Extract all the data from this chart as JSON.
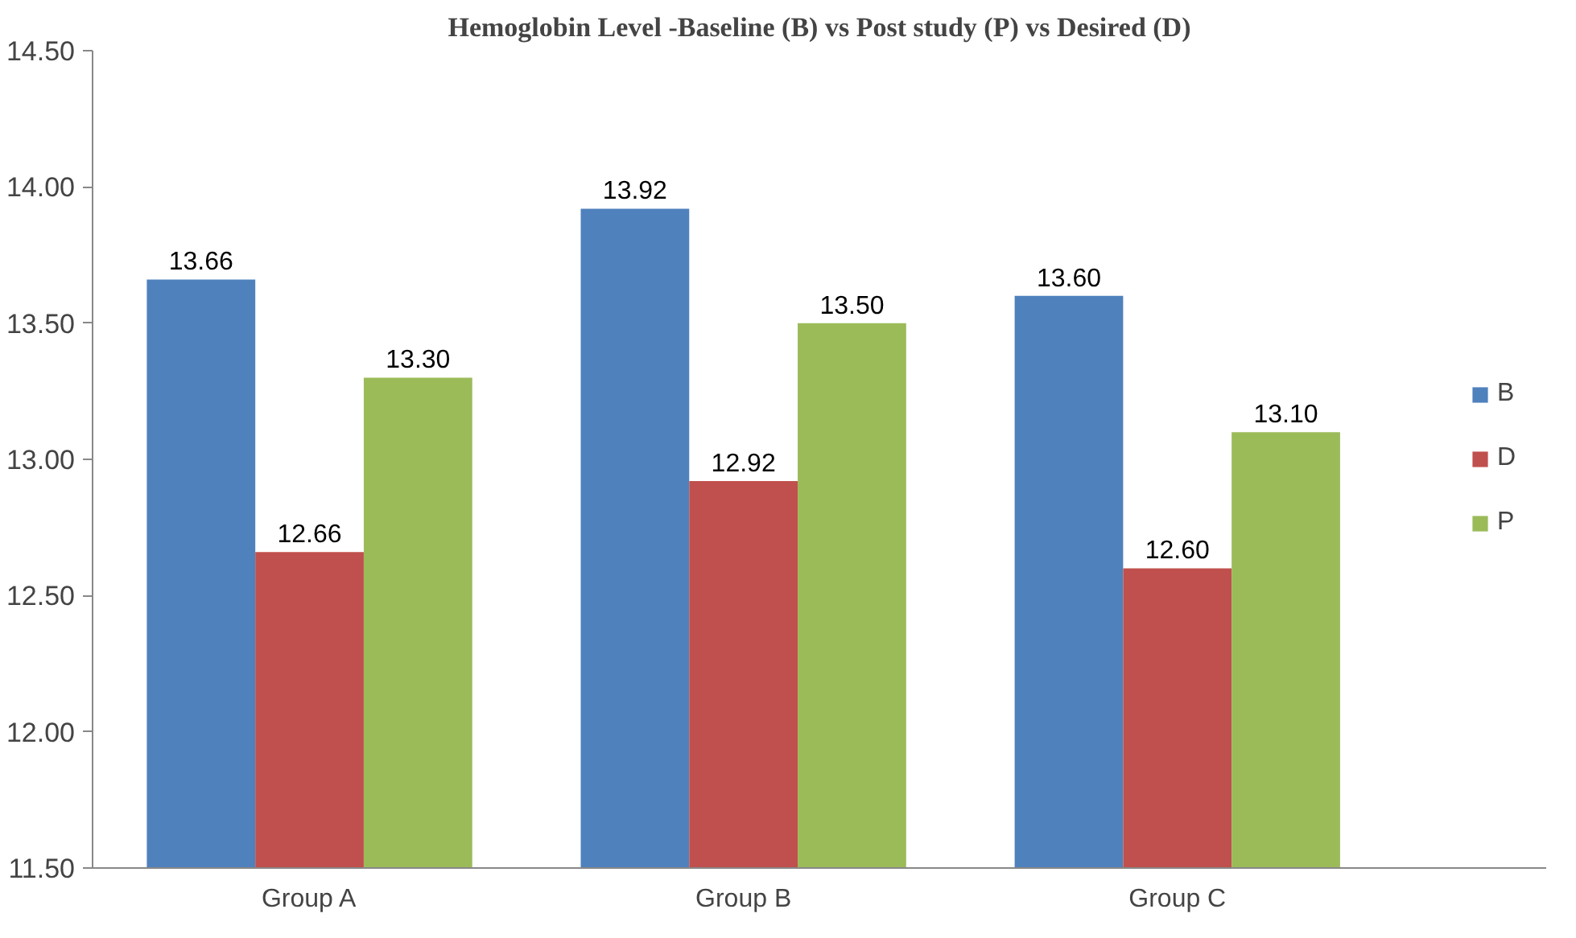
{
  "chart_data": {
    "type": "bar",
    "title": "Hemoglobin Level -Baseline (B) vs Post study (P) vs Desired (D)",
    "categories": [
      "Group A",
      "Group B",
      "Group C"
    ],
    "series": [
      {
        "name": "B",
        "color": "#4f81bd",
        "values": [
          13.66,
          13.92,
          13.6
        ],
        "value_labels": [
          "13.66",
          "13.92",
          "13.60"
        ]
      },
      {
        "name": "D",
        "color": "#c0504d",
        "values": [
          12.66,
          12.92,
          12.6
        ],
        "value_labels": [
          "12.66",
          "12.92",
          "12.60"
        ]
      },
      {
        "name": "P",
        "color": "#9bbb59",
        "values": [
          13.3,
          13.5,
          13.1
        ],
        "value_labels": [
          "13.30",
          "13.50",
          "13.10"
        ]
      }
    ],
    "ylim": [
      11.5,
      14.5
    ],
    "yticks": [
      {
        "value": 11.5,
        "label": "11.50"
      },
      {
        "value": 12,
        "label": "12.00"
      },
      {
        "value": 12.5,
        "label": "12.50"
      },
      {
        "value": 13,
        "label": "13.00"
      },
      {
        "value": 13.5,
        "label": "13.50"
      },
      {
        "value": 14,
        "label": "14.00"
      },
      {
        "value": 14.5,
        "label": "14.50"
      }
    ],
    "grid": false,
    "legend": "right"
  }
}
